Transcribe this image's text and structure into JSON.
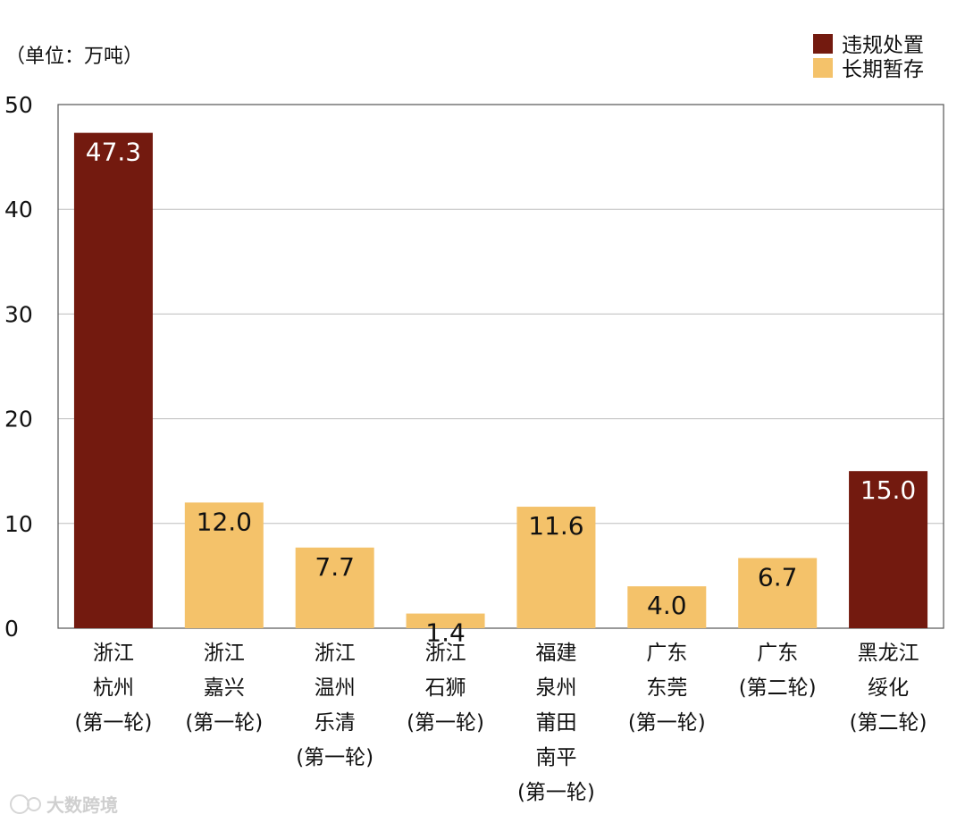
{
  "chart_data": {
    "type": "bar",
    "unit_label": "（单位：万吨）",
    "ylim": [
      0,
      50
    ],
    "yticks": [
      0,
      10,
      20,
      30,
      40,
      50
    ],
    "grid": true,
    "legend_position": "top-right",
    "legend": [
      {
        "name": "违规处置",
        "color": "#731a0f"
      },
      {
        "name": "长期暂存",
        "color": "#f4c26a"
      }
    ],
    "categories": [
      {
        "lines": [
          "浙江",
          "杭州",
          "(第一轮)"
        ],
        "value": 47.3,
        "label": "47.3",
        "series": "违规处置"
      },
      {
        "lines": [
          "浙江",
          "嘉兴",
          "(第一轮)"
        ],
        "value": 12.0,
        "label": "12.0",
        "series": "长期暂存"
      },
      {
        "lines": [
          "浙江",
          "温州",
          "乐清",
          "(第一轮)"
        ],
        "value": 7.7,
        "label": "7.7",
        "series": "长期暂存"
      },
      {
        "lines": [
          "浙江",
          "石狮",
          "(第一轮)"
        ],
        "value": 1.4,
        "label": "1.4",
        "series": "长期暂存"
      },
      {
        "lines": [
          "福建",
          "泉州",
          "莆田",
          "南平",
          "(第一轮)"
        ],
        "value": 11.6,
        "label": "11.6",
        "series": "长期暂存"
      },
      {
        "lines": [
          "广东",
          "东莞",
          "(第一轮)"
        ],
        "value": 4.0,
        "label": "4.0",
        "series": "长期暂存"
      },
      {
        "lines": [
          "广东",
          "(第二轮)"
        ],
        "value": 6.7,
        "label": "6.7",
        "series": "长期暂存"
      },
      {
        "lines": [
          "黑龙江",
          "绥化",
          "(第二轮)"
        ],
        "value": 15.0,
        "label": "15.0",
        "series": "违规处置"
      }
    ]
  },
  "watermark": "大数跨境"
}
